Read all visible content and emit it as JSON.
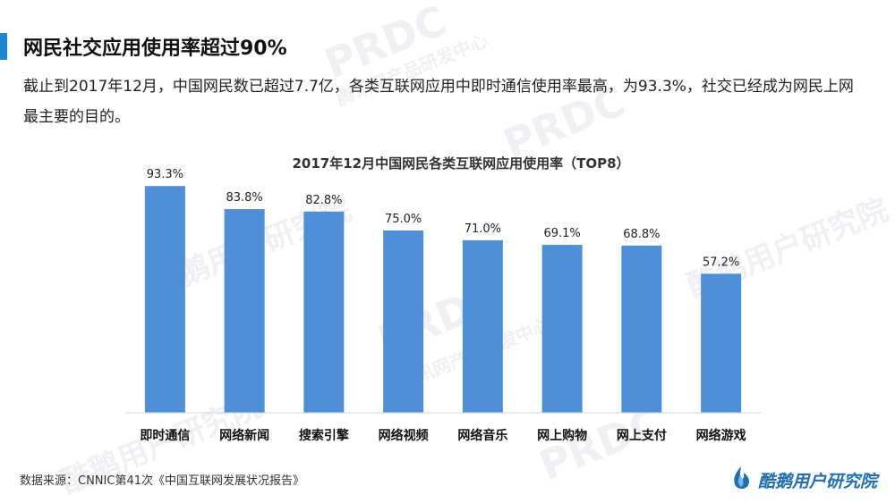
{
  "header": {
    "title": "网民社交应用使用率超过90%"
  },
  "intro": {
    "text": "截止到2017年12月，中国网民数已超过7.7亿，各类互联网应用中即时通信使用率最高，为93.3%，社交已经成为网民上网最主要的目的。"
  },
  "footer": {
    "source": "数据来源：CNNIC第41次《中国互联网发展状况报告》",
    "logo_text": "酷鹅用户研究院"
  },
  "watermark": {
    "brand": "PRDC",
    "name": "腾讯网产品研发中心",
    "org": "酷鹅用户研究院"
  },
  "colors": {
    "accent": "#1e88d6",
    "bar": "#4f8fd8",
    "logo": "#1f6fb2"
  },
  "chart_data": {
    "type": "bar",
    "title": "2017年12月中国网民各类互联网应用使用率（TOP8）",
    "categories": [
      "即时通信",
      "网络新闻",
      "搜索引擎",
      "网络视频",
      "网络音乐",
      "网上购物",
      "网上支付",
      "网络游戏"
    ],
    "values": [
      93.3,
      83.8,
      82.8,
      75.0,
      71.0,
      69.1,
      68.8,
      57.2
    ],
    "value_labels": [
      "93.3%",
      "83.8%",
      "82.8%",
      "75.0%",
      "71.0%",
      "69.1%",
      "68.8%",
      "57.2%"
    ],
    "ylim": [
      0,
      100
    ],
    "xlabel": "",
    "ylabel": "",
    "grid": false,
    "legend": "none"
  }
}
